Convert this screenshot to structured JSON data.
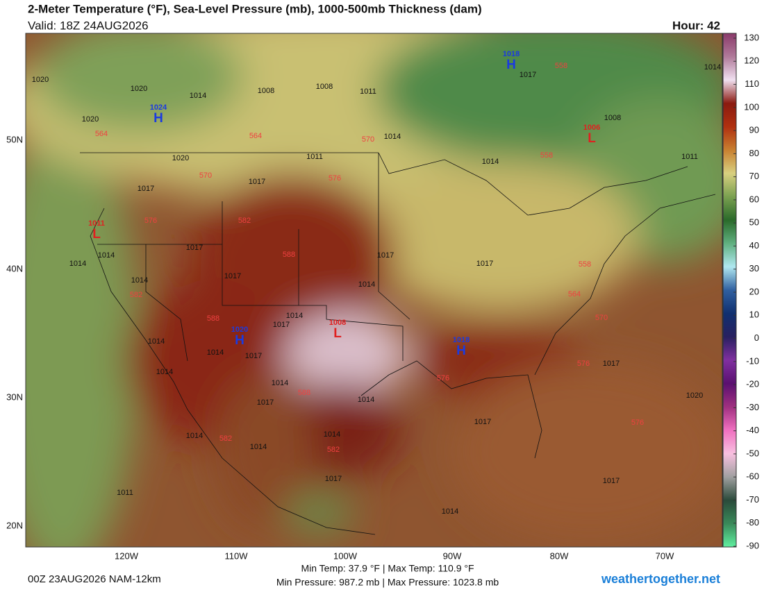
{
  "header": {
    "title": "2-Meter Temperature (°F), Sea-Level Pressure (mb), 1000-500mb Thickness (dam)",
    "valid": "Valid: 18Z 24AUG2026",
    "hour": "Hour: 42"
  },
  "axes": {
    "longitudes": [
      "120W",
      "110W",
      "100W",
      "90W",
      "80W",
      "70W"
    ],
    "latitudes": [
      "50N",
      "40N",
      "30N",
      "20N"
    ]
  },
  "colorbar": {
    "ticks": [
      130,
      120,
      110,
      100,
      90,
      80,
      70,
      60,
      50,
      40,
      30,
      20,
      10,
      0,
      -10,
      -20,
      -30,
      -40,
      -50,
      -60,
      -70,
      -80,
      -90
    ],
    "colors": [
      "#8a3a6a",
      "#b07a9a",
      "#f0e0f0",
      "#8a1a10",
      "#b03010",
      "#c88030",
      "#d8d080",
      "#7aa050",
      "#2a6a2a",
      "#60b080",
      "#b0e8f0",
      "#3060a0",
      "#103070",
      "#282060",
      "#8030a0",
      "#5a1070",
      "#a03080",
      "#f070c0",
      "#f8c0e0",
      "#a0a0a0",
      "#2a4a3a",
      "#3a8a5a",
      "#60f0a0"
    ]
  },
  "map": {
    "isobar_labels": [
      "1020",
      "1020",
      "1020",
      "1014",
      "1008",
      "1008",
      "1011",
      "1014",
      "1020",
      "1017",
      "1011",
      "1017",
      "1014",
      "1017",
      "1014",
      "1014",
      "1017",
      "1017",
      "1014",
      "1017",
      "1014",
      "1017",
      "1014",
      "1014",
      "1017",
      "1014",
      "1014",
      "1017",
      "1014",
      "1014",
      "1014",
      "1014",
      "1017",
      "1017",
      "1017",
      "1020",
      "1017",
      "1014",
      "1011",
      "1014",
      "1008",
      "1014",
      "1011",
      "1017"
    ],
    "thickness_labels": [
      "564",
      "564",
      "570",
      "570",
      "576",
      "576",
      "582",
      "588",
      "582",
      "588",
      "588",
      "582",
      "582",
      "576",
      "576",
      "570",
      "564",
      "558",
      "558",
      "558",
      "576"
    ],
    "centers": [
      {
        "letter": "H",
        "value": "1024"
      },
      {
        "letter": "L",
        "value": "1011"
      },
      {
        "letter": "H",
        "value": "1020"
      },
      {
        "letter": "L",
        "value": "1008"
      },
      {
        "letter": "H",
        "value": "1018"
      },
      {
        "letter": "H",
        "value": "1018"
      },
      {
        "letter": "L",
        "value": "1006"
      }
    ]
  },
  "footer": {
    "run": "00Z 23AUG2026 NAM-12km",
    "temps": "Min Temp:  37.9 °F | Max Temp: 110.9 °F",
    "pressures": "Min Pressure: 987.2 mb | Max Pressure: 1023.8 mb",
    "site": "weathertogether.net"
  }
}
